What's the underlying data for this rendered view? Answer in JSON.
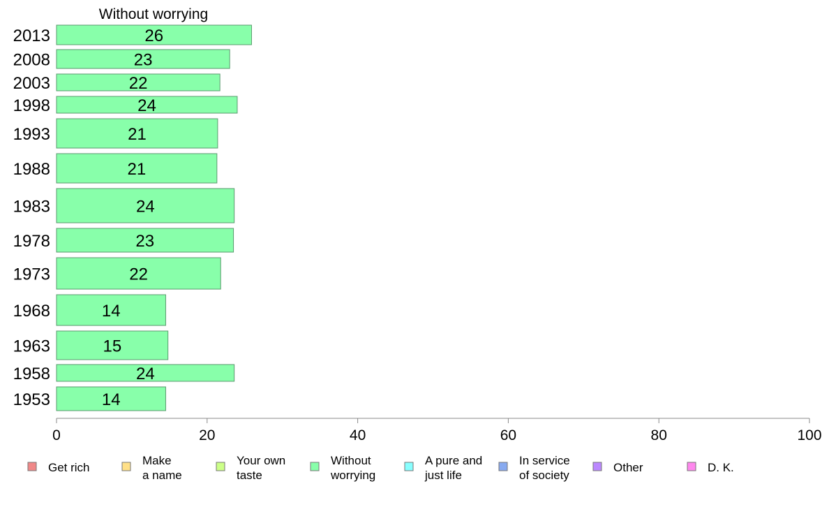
{
  "chart_data": {
    "type": "bar",
    "orientation": "horizontal",
    "title": "Without worrying",
    "categories": [
      "2013",
      "2008",
      "2003",
      "1998",
      "1993",
      "1988",
      "1983",
      "1978",
      "1973",
      "1968",
      "1963",
      "1958",
      "1953"
    ],
    "values": [
      26,
      23,
      22,
      24,
      21,
      21,
      24,
      23,
      22,
      14,
      15,
      24,
      14
    ],
    "exact_values": [
      25.9,
      23.0,
      21.7,
      24.0,
      21.4,
      21.3,
      23.6,
      23.5,
      21.8,
      14.5,
      14.8,
      23.6,
      14.5
    ],
    "xlim": [
      0,
      100
    ],
    "xticks": [
      "0",
      "20",
      "40",
      "60",
      "80",
      "100"
    ],
    "bar_color": "#88ffaa",
    "grid": false,
    "legend_position": "bottom",
    "legend": [
      {
        "lines": [
          "Get rich"
        ],
        "color": "#f08888"
      },
      {
        "lines": [
          "Make",
          "a name"
        ],
        "color": "#ffe088"
      },
      {
        "lines": [
          "Your own",
          "taste"
        ],
        "color": "#ccff88"
      },
      {
        "lines": [
          "Without",
          "worrying"
        ],
        "color": "#88ffaa"
      },
      {
        "lines": [
          "A pure and",
          "just life"
        ],
        "color": "#88ffff"
      },
      {
        "lines": [
          "In service",
          "of society"
        ],
        "color": "#88aaf0"
      },
      {
        "lines": [
          "Other"
        ],
        "color": "#bb88ff"
      },
      {
        "lines": [
          "D. K."
        ],
        "color": "#ff88ee"
      }
    ]
  }
}
